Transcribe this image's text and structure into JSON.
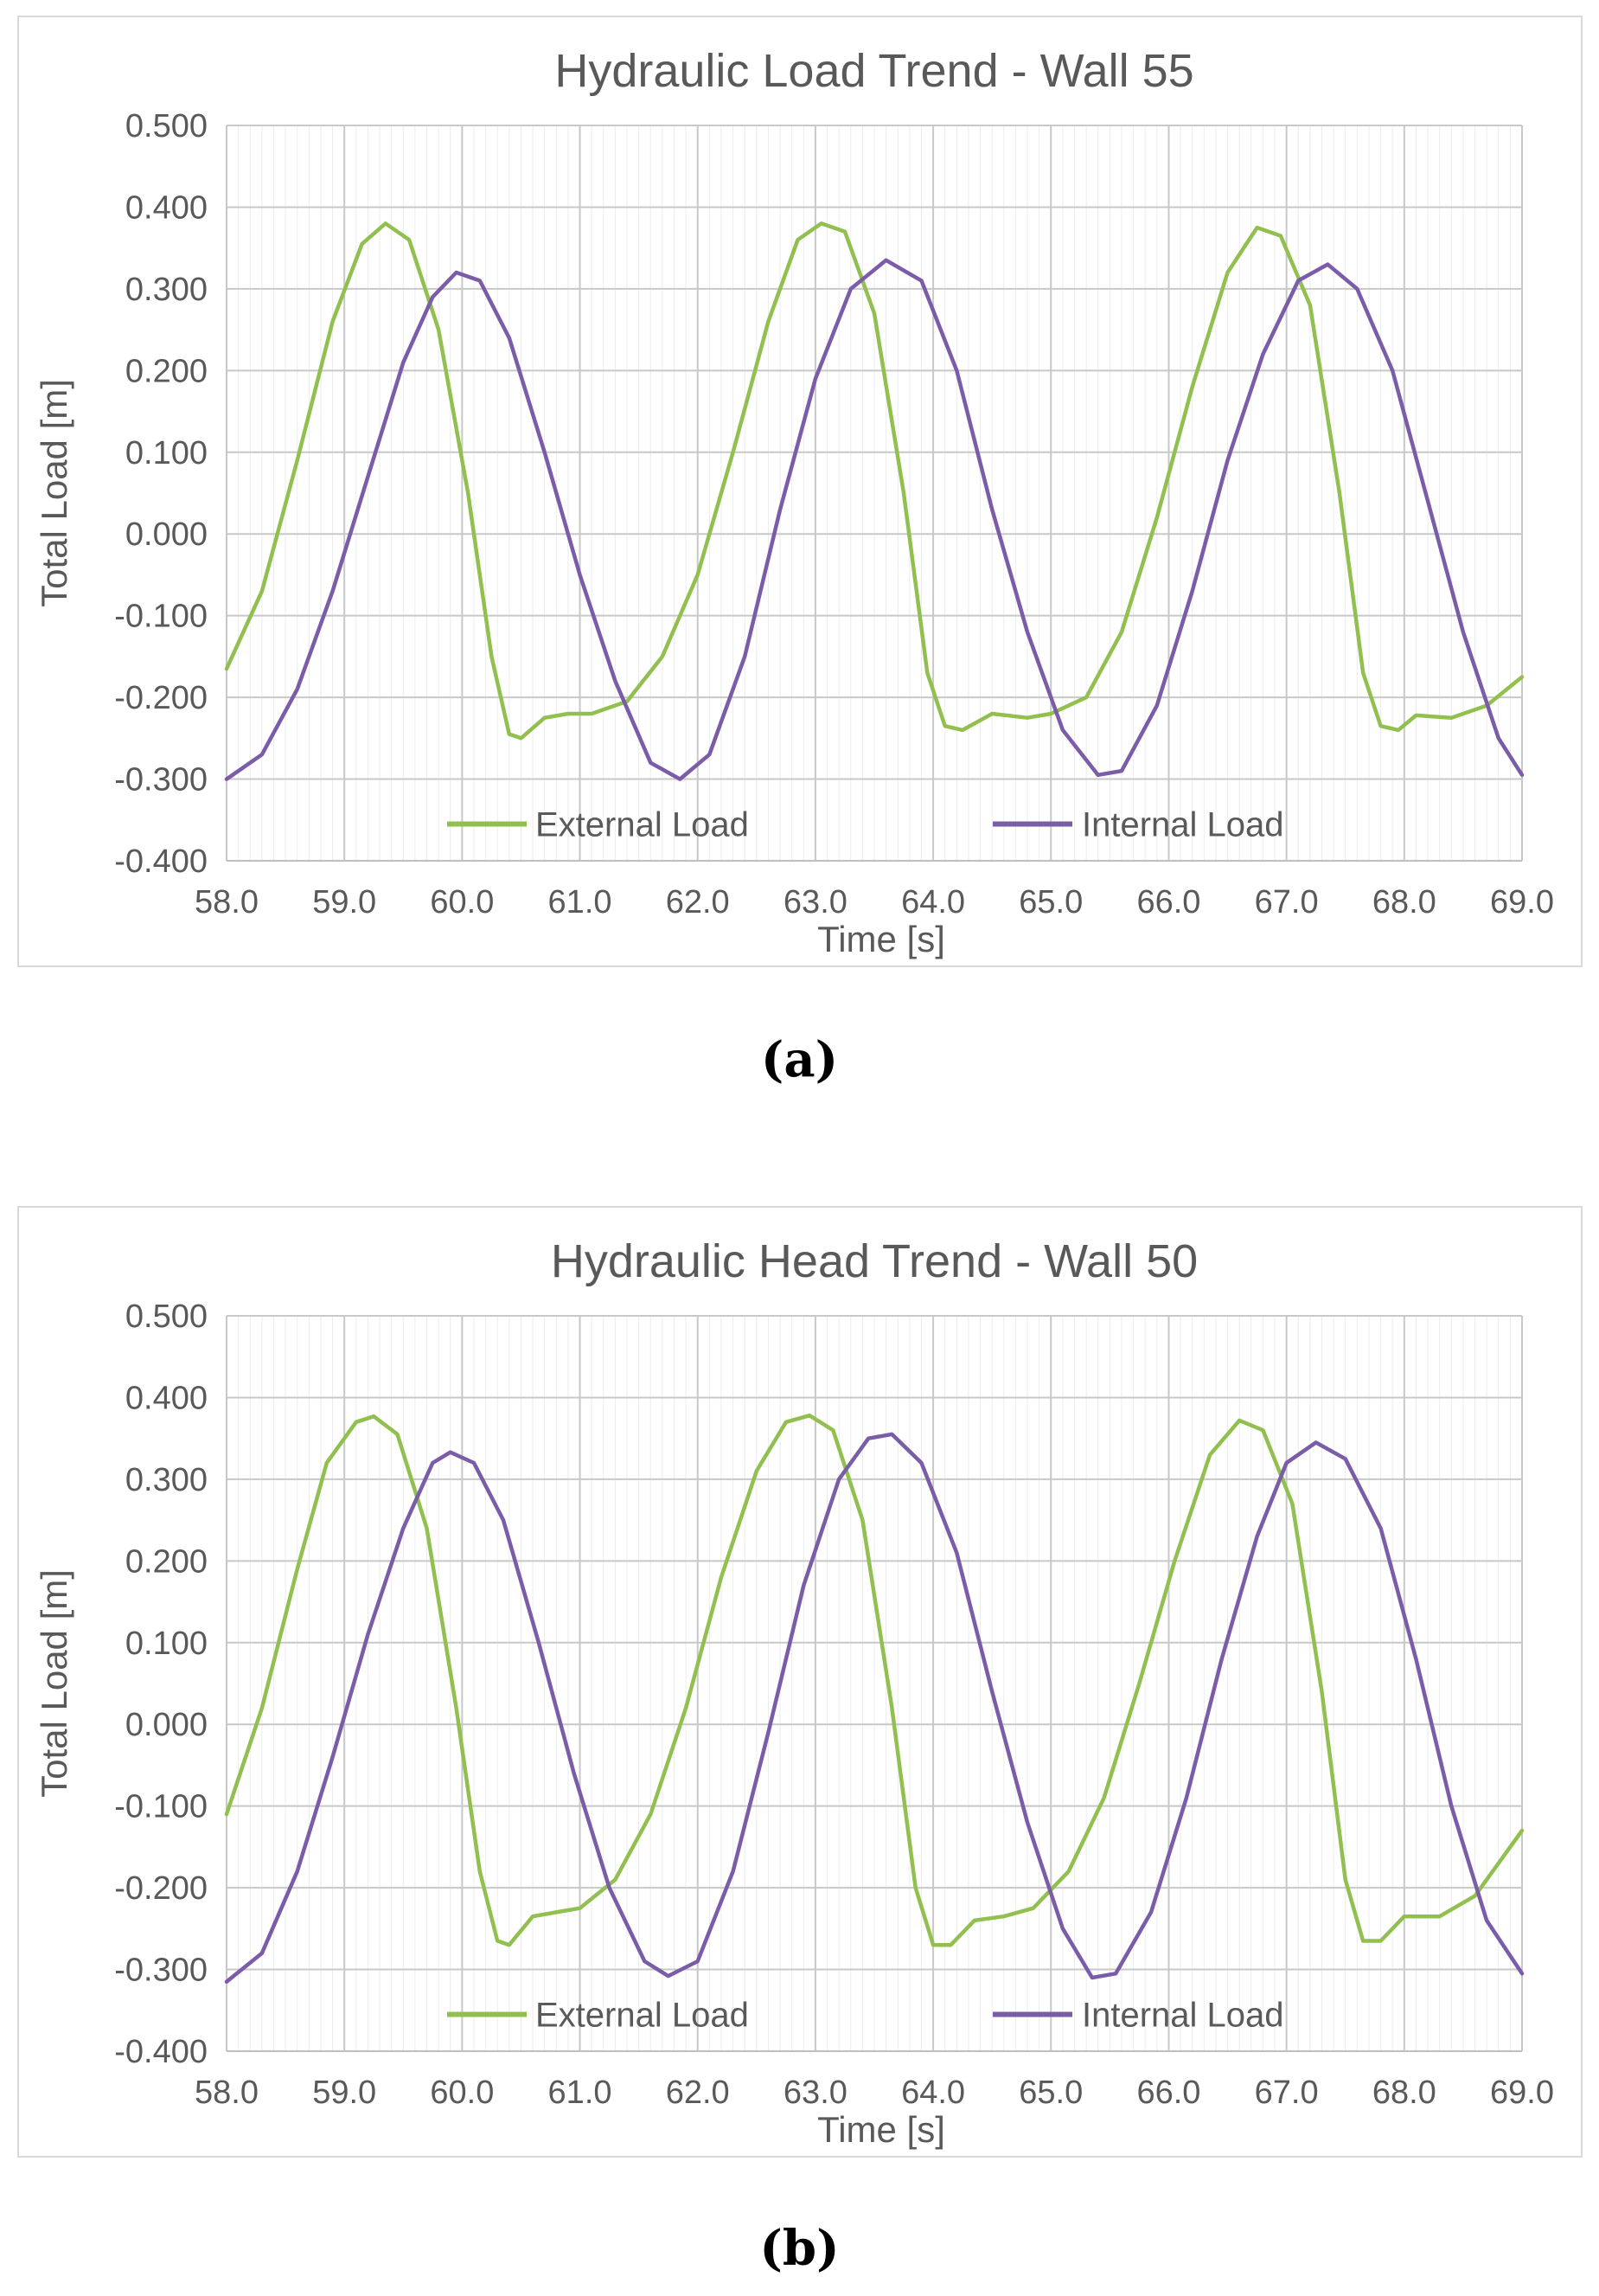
{
  "chart_data": [
    {
      "type": "line",
      "title": "Hydraulic Load Trend - Wall 55",
      "xlabel": "Time [s]",
      "ylabel": "Total Load [m]",
      "xlim": [
        58.0,
        69.0
      ],
      "ylim": [
        -0.4,
        0.5
      ],
      "x_ticks": [
        "58.0",
        "59.0",
        "60.0",
        "61.0",
        "62.0",
        "63.0",
        "64.0",
        "65.0",
        "66.0",
        "67.0",
        "68.0",
        "69.0"
      ],
      "y_ticks": [
        "0.500",
        "0.400",
        "0.300",
        "0.200",
        "0.100",
        "0.000",
        "-0.100",
        "-0.200",
        "-0.300",
        "-0.400"
      ],
      "grid": true,
      "legend_position": "bottom-inside",
      "series": [
        {
          "name": "External Load",
          "color": "#92c050",
          "points": [
            [
              58.0,
              -0.165
            ],
            [
              58.3,
              -0.07
            ],
            [
              58.6,
              0.09
            ],
            [
              58.9,
              0.26
            ],
            [
              59.15,
              0.355
            ],
            [
              59.35,
              0.38
            ],
            [
              59.55,
              0.36
            ],
            [
              59.8,
              0.25
            ],
            [
              60.05,
              0.05
            ],
            [
              60.25,
              -0.15
            ],
            [
              60.4,
              -0.245
            ],
            [
              60.5,
              -0.25
            ],
            [
              60.7,
              -0.225
            ],
            [
              60.9,
              -0.22
            ],
            [
              61.1,
              -0.22
            ],
            [
              61.4,
              -0.205
            ],
            [
              61.7,
              -0.15
            ],
            [
              62.0,
              -0.05
            ],
            [
              62.3,
              0.1
            ],
            [
              62.6,
              0.26
            ],
            [
              62.85,
              0.36
            ],
            [
              63.05,
              0.38
            ],
            [
              63.25,
              0.37
            ],
            [
              63.5,
              0.27
            ],
            [
              63.75,
              0.05
            ],
            [
              63.95,
              -0.17
            ],
            [
              64.1,
              -0.235
            ],
            [
              64.25,
              -0.24
            ],
            [
              64.5,
              -0.22
            ],
            [
              64.8,
              -0.225
            ],
            [
              65.0,
              -0.22
            ],
            [
              65.3,
              -0.2
            ],
            [
              65.6,
              -0.12
            ],
            [
              65.9,
              0.02
            ],
            [
              66.2,
              0.18
            ],
            [
              66.5,
              0.32
            ],
            [
              66.75,
              0.375
            ],
            [
              66.95,
              0.365
            ],
            [
              67.2,
              0.28
            ],
            [
              67.45,
              0.05
            ],
            [
              67.65,
              -0.17
            ],
            [
              67.8,
              -0.235
            ],
            [
              67.95,
              -0.24
            ],
            [
              68.1,
              -0.222
            ],
            [
              68.4,
              -0.225
            ],
            [
              68.7,
              -0.21
            ],
            [
              69.0,
              -0.175
            ]
          ]
        },
        {
          "name": "Internal Load",
          "color": "#7b5ca8",
          "points": [
            [
              58.0,
              -0.3
            ],
            [
              58.3,
              -0.27
            ],
            [
              58.6,
              -0.19
            ],
            [
              58.9,
              -0.07
            ],
            [
              59.2,
              0.07
            ],
            [
              59.5,
              0.21
            ],
            [
              59.75,
              0.29
            ],
            [
              59.95,
              0.32
            ],
            [
              60.15,
              0.31
            ],
            [
              60.4,
              0.24
            ],
            [
              60.7,
              0.1
            ],
            [
              61.0,
              -0.05
            ],
            [
              61.3,
              -0.18
            ],
            [
              61.6,
              -0.28
            ],
            [
              61.85,
              -0.3
            ],
            [
              62.1,
              -0.27
            ],
            [
              62.4,
              -0.15
            ],
            [
              62.7,
              0.03
            ],
            [
              63.0,
              0.19
            ],
            [
              63.3,
              0.3
            ],
            [
              63.6,
              0.335
            ],
            [
              63.9,
              0.31
            ],
            [
              64.2,
              0.2
            ],
            [
              64.5,
              0.03
            ],
            [
              64.8,
              -0.12
            ],
            [
              65.1,
              -0.24
            ],
            [
              65.4,
              -0.295
            ],
            [
              65.6,
              -0.29
            ],
            [
              65.9,
              -0.21
            ],
            [
              66.2,
              -0.07
            ],
            [
              66.5,
              0.09
            ],
            [
              66.8,
              0.22
            ],
            [
              67.1,
              0.31
            ],
            [
              67.35,
              0.33
            ],
            [
              67.6,
              0.3
            ],
            [
              67.9,
              0.2
            ],
            [
              68.2,
              0.04
            ],
            [
              68.5,
              -0.12
            ],
            [
              68.8,
              -0.25
            ],
            [
              69.0,
              -0.295
            ]
          ]
        }
      ]
    },
    {
      "type": "line",
      "title": "Hydraulic Head Trend - Wall 50",
      "xlabel": "Time [s]",
      "ylabel": "Total Load [m]",
      "xlim": [
        58.0,
        69.0
      ],
      "ylim": [
        -0.4,
        0.5
      ],
      "x_ticks": [
        "58.0",
        "59.0",
        "60.0",
        "61.0",
        "62.0",
        "63.0",
        "64.0",
        "65.0",
        "66.0",
        "67.0",
        "68.0",
        "69.0"
      ],
      "y_ticks": [
        "0.500",
        "0.400",
        "0.300",
        "0.200",
        "0.100",
        "0.000",
        "-0.100",
        "-0.200",
        "-0.300",
        "-0.400"
      ],
      "grid": true,
      "legend_position": "bottom-inside",
      "series": [
        {
          "name": "External Load",
          "color": "#92c050",
          "points": [
            [
              58.0,
              -0.11
            ],
            [
              58.3,
              0.02
            ],
            [
              58.6,
              0.19
            ],
            [
              58.85,
              0.32
            ],
            [
              59.1,
              0.37
            ],
            [
              59.25,
              0.377
            ],
            [
              59.45,
              0.355
            ],
            [
              59.7,
              0.24
            ],
            [
              59.95,
              0.02
            ],
            [
              60.15,
              -0.18
            ],
            [
              60.3,
              -0.265
            ],
            [
              60.4,
              -0.27
            ],
            [
              60.6,
              -0.235
            ],
            [
              60.8,
              -0.23
            ],
            [
              61.0,
              -0.225
            ],
            [
              61.3,
              -0.19
            ],
            [
              61.6,
              -0.11
            ],
            [
              61.9,
              0.02
            ],
            [
              62.2,
              0.18
            ],
            [
              62.5,
              0.31
            ],
            [
              62.75,
              0.37
            ],
            [
              62.95,
              0.378
            ],
            [
              63.15,
              0.36
            ],
            [
              63.4,
              0.25
            ],
            [
              63.65,
              0.02
            ],
            [
              63.85,
              -0.2
            ],
            [
              64.0,
              -0.27
            ],
            [
              64.15,
              -0.27
            ],
            [
              64.35,
              -0.24
            ],
            [
              64.6,
              -0.235
            ],
            [
              64.85,
              -0.225
            ],
            [
              65.15,
              -0.18
            ],
            [
              65.45,
              -0.09
            ],
            [
              65.75,
              0.05
            ],
            [
              66.05,
              0.2
            ],
            [
              66.35,
              0.33
            ],
            [
              66.6,
              0.372
            ],
            [
              66.8,
              0.36
            ],
            [
              67.05,
              0.27
            ],
            [
              67.3,
              0.04
            ],
            [
              67.5,
              -0.19
            ],
            [
              67.65,
              -0.265
            ],
            [
              67.8,
              -0.265
            ],
            [
              68.0,
              -0.235
            ],
            [
              68.3,
              -0.235
            ],
            [
              68.6,
              -0.21
            ],
            [
              69.0,
              -0.13
            ]
          ]
        },
        {
          "name": "Internal Load",
          "color": "#7b5ca8",
          "points": [
            [
              58.0,
              -0.315
            ],
            [
              58.3,
              -0.28
            ],
            [
              58.6,
              -0.18
            ],
            [
              58.9,
              -0.04
            ],
            [
              59.2,
              0.11
            ],
            [
              59.5,
              0.24
            ],
            [
              59.75,
              0.32
            ],
            [
              59.9,
              0.333
            ],
            [
              60.1,
              0.32
            ],
            [
              60.35,
              0.25
            ],
            [
              60.65,
              0.1
            ],
            [
              60.95,
              -0.06
            ],
            [
              61.25,
              -0.2
            ],
            [
              61.55,
              -0.29
            ],
            [
              61.75,
              -0.308
            ],
            [
              62.0,
              -0.29
            ],
            [
              62.3,
              -0.18
            ],
            [
              62.6,
              -0.01
            ],
            [
              62.9,
              0.17
            ],
            [
              63.2,
              0.3
            ],
            [
              63.45,
              0.35
            ],
            [
              63.65,
              0.355
            ],
            [
              63.9,
              0.32
            ],
            [
              64.2,
              0.21
            ],
            [
              64.5,
              0.04
            ],
            [
              64.8,
              -0.12
            ],
            [
              65.1,
              -0.25
            ],
            [
              65.35,
              -0.31
            ],
            [
              65.55,
              -0.305
            ],
            [
              65.85,
              -0.23
            ],
            [
              66.15,
              -0.09
            ],
            [
              66.45,
              0.08
            ],
            [
              66.75,
              0.23
            ],
            [
              67.0,
              0.32
            ],
            [
              67.25,
              0.345
            ],
            [
              67.5,
              0.325
            ],
            [
              67.8,
              0.24
            ],
            [
              68.1,
              0.08
            ],
            [
              68.4,
              -0.1
            ],
            [
              68.7,
              -0.24
            ],
            [
              69.0,
              -0.305
            ]
          ]
        }
      ]
    }
  ],
  "captions": [
    "(a)",
    "(b)"
  ]
}
